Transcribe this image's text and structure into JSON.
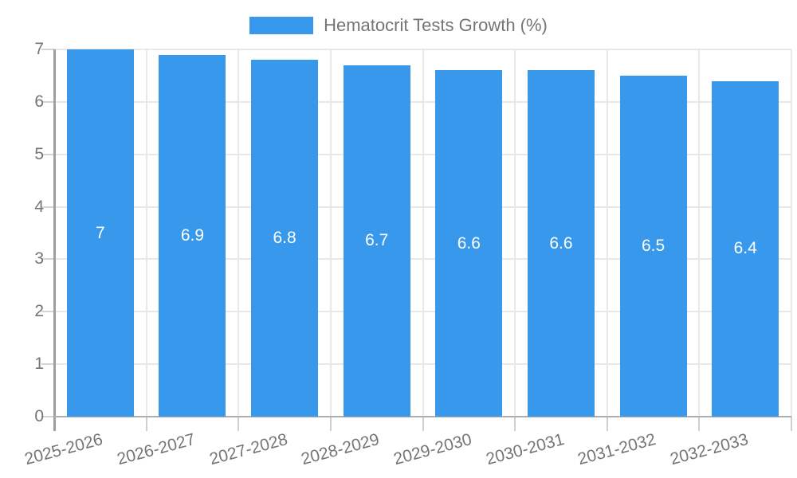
{
  "chart_data": {
    "type": "bar",
    "title": "Hematocrit Tests Growth (%)",
    "legend": {
      "label": "Hematocrit Tests Growth (%)",
      "position": "top"
    },
    "categories": [
      "2025-2026",
      "2026-2027",
      "2027-2028",
      "2028-2029",
      "2029-2030",
      "2030-2031",
      "2031-2032",
      "2032-2033"
    ],
    "values": [
      7,
      6.9,
      6.8,
      6.7,
      6.6,
      6.6,
      6.5,
      6.4
    ],
    "bar_labels": [
      "7",
      "6.9",
      "6.8",
      "6.7",
      "6.6",
      "6.6",
      "6.5",
      "6.4"
    ],
    "xlabel": "",
    "ylabel": "",
    "ylim": [
      0,
      7
    ],
    "yticks": [
      "0",
      "1",
      "2",
      "3",
      "4",
      "5",
      "6",
      "7"
    ],
    "grid": true,
    "x_tick_rotation_deg": -15,
    "colors": {
      "bar": "#3899ec",
      "bar_label": "#ffffff",
      "grid": "#e8e8e8",
      "y_axis_line": "#9e9e9e",
      "x_axis_line": "#b0b0b0",
      "tick_text": "#757575",
      "background": "#ffffff"
    }
  }
}
